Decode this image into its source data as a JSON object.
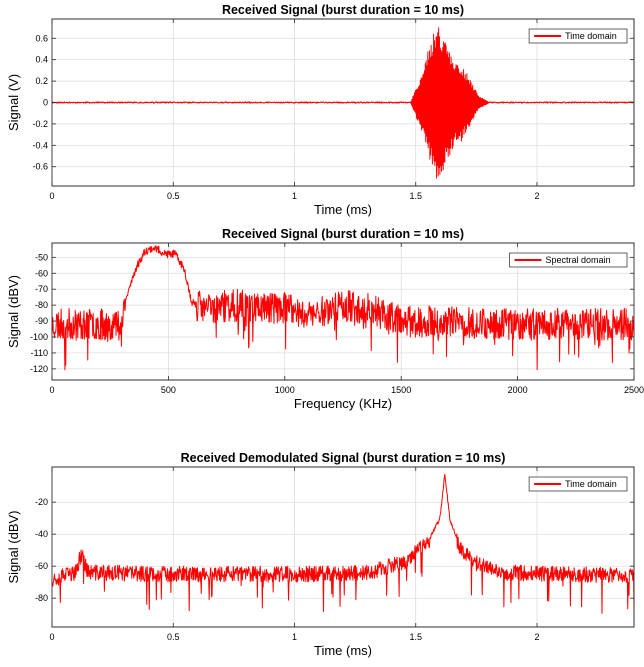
{
  "chart_data": [
    {
      "type": "line",
      "title": "Received Signal (burst duration = 10 ms)",
      "xlabel": "Time (ms)",
      "ylabel": "Signal (V)",
      "xlim": [
        0,
        2.4
      ],
      "ylim": [
        -0.78,
        0.78
      ],
      "xticks": [
        0,
        0.5,
        1,
        1.5,
        2
      ],
      "xticklabels": [
        "0",
        "0.5",
        "1",
        "1.5",
        "2"
      ],
      "yticks": [
        0.6,
        0.4,
        0.2,
        0,
        -0.2,
        -0.4,
        -0.6
      ],
      "yticklabels": [
        "0.6",
        "0.4",
        "0.2",
        "0",
        "-0.2",
        "-0.4",
        "-0.6"
      ],
      "grid": true,
      "legend_position": "top-right",
      "series": [
        {
          "name": "Time domain",
          "color": "#ff0000",
          "style": "oscillating-envelope",
          "noise_amplitude": 0.006,
          "envelope": [
            [
              0,
              0.006
            ],
            [
              1.48,
              0.006
            ],
            [
              1.52,
              0.25
            ],
            [
              1.56,
              0.55
            ],
            [
              1.59,
              0.76
            ],
            [
              1.62,
              0.6
            ],
            [
              1.64,
              0.5
            ],
            [
              1.66,
              0.38
            ],
            [
              1.69,
              0.36
            ],
            [
              1.72,
              0.23
            ],
            [
              1.76,
              0.06
            ],
            [
              1.8,
              0.006
            ],
            [
              2.4,
              0.006
            ]
          ]
        }
      ]
    },
    {
      "type": "line",
      "title": "Received Signal (burst duration = 10 ms)",
      "xlabel": "Frequency (KHz)",
      "ylabel": "Signal (dBV)",
      "xlim": [
        0,
        2500
      ],
      "ylim": [
        -127,
        -41
      ],
      "xticks": [
        0,
        500,
        1000,
        1500,
        2000,
        2500
      ],
      "xticklabels": [
        "0",
        "500",
        "1000",
        "1500",
        "2000",
        "2500"
      ],
      "yticks": [
        -50,
        -60,
        -70,
        -80,
        -90,
        -100,
        -110,
        -120
      ],
      "yticklabels": [
        "-50",
        "-60",
        "-70",
        "-80",
        "-90",
        "-100",
        "-110",
        "-120"
      ],
      "grid": true,
      "legend_position": "top-right",
      "series": [
        {
          "name": "Spectral domain",
          "color": "#ff0000",
          "style": "noisy-baseline",
          "noise_amplitude": 10,
          "dip_depth": 22,
          "baseline": [
            [
              0,
              -92
            ],
            [
              300,
              -92
            ],
            [
              320,
              -75
            ],
            [
              360,
              -57
            ],
            [
              400,
              -46
            ],
            [
              440,
              -44
            ],
            [
              490,
              -48
            ],
            [
              530,
              -48
            ],
            [
              570,
              -58
            ],
            [
              600,
              -78
            ],
            [
              650,
              -82
            ],
            [
              800,
              -80
            ],
            [
              1000,
              -82
            ],
            [
              1100,
              -86
            ],
            [
              1250,
              -80
            ],
            [
              1350,
              -82
            ],
            [
              1500,
              -90
            ],
            [
              2000,
              -92
            ],
            [
              2500,
              -92
            ]
          ]
        }
      ]
    },
    {
      "type": "line",
      "title": "Received Demodulated Signal (burst duration = 10 ms)",
      "xlabel": "Time (ms)",
      "ylabel": "Signal (dBV)",
      "xlim": [
        0,
        2.4
      ],
      "ylim": [
        -98,
        2
      ],
      "xticks": [
        0,
        0.5,
        1,
        1.5,
        2
      ],
      "xticklabels": [
        "0",
        "0.5",
        "1",
        "1.5",
        "2"
      ],
      "yticks": [
        -20,
        -40,
        -60,
        -80
      ],
      "yticklabels": [
        "-20",
        "-40",
        "-60",
        "-80"
      ],
      "grid": true,
      "legend_position": "top-right",
      "series": [
        {
          "name": "Time domain",
          "color": "#ff0000",
          "style": "noisy-baseline",
          "noise_amplitude": 5,
          "dip_depth": 22,
          "baseline": [
            [
              0,
              -68
            ],
            [
              0.1,
              -64
            ],
            [
              0.12,
              -52
            ],
            [
              0.15,
              -64
            ],
            [
              0.5,
              -65
            ],
            [
              1.0,
              -65
            ],
            [
              1.3,
              -64
            ],
            [
              1.45,
              -58
            ],
            [
              1.55,
              -45
            ],
            [
              1.6,
              -30
            ],
            [
              1.62,
              -2
            ],
            [
              1.64,
              -30
            ],
            [
              1.68,
              -48
            ],
            [
              1.75,
              -58
            ],
            [
              1.85,
              -64
            ],
            [
              2.4,
              -66
            ]
          ]
        }
      ]
    }
  ]
}
